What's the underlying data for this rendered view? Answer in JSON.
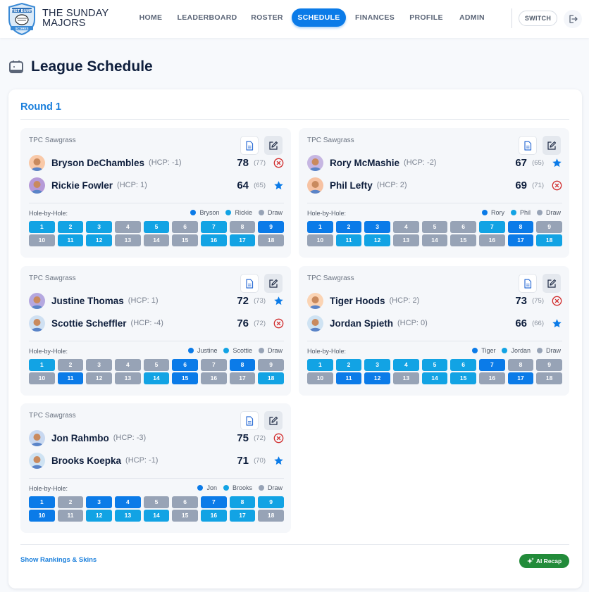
{
  "brand": {
    "title_line1": "THE SUNDAY",
    "title_line2": "MAJORS",
    "logo_top": "FIST BUMP",
    "logo_bottom": "SCORES"
  },
  "nav": {
    "items": [
      {
        "label": "HOME",
        "active": false
      },
      {
        "label": "LEADERBOARD",
        "active": false
      },
      {
        "label": "ROSTER",
        "active": false
      },
      {
        "label": "SCHEDULE",
        "active": true
      },
      {
        "label": "FINANCES",
        "active": false
      },
      {
        "label": "PROFILE",
        "active": false
      },
      {
        "label": "ADMIN",
        "active": false
      }
    ],
    "switch_label": "SWITCH",
    "logout_icon": "logout-icon"
  },
  "page": {
    "title": "League Schedule",
    "icon": "calendar-icon"
  },
  "round": {
    "title": "Round 1"
  },
  "colors": {
    "accent": "#0b7be8",
    "player1": "#0b7be8",
    "player2": "#12a3e4",
    "draw": "#97a3b6",
    "win_star": "#0b7be8",
    "loss_x": "#d12c2c",
    "ai_green": "#228b3a"
  },
  "matches": [
    {
      "course": "TPC Sawgrass",
      "players": [
        {
          "name": "Bryson DeChambles",
          "hcp": "(HCP: -1)",
          "gross": "78",
          "net": "(77)",
          "result": "loss",
          "short": "Bryson",
          "avatar": "#f9c9a8"
        },
        {
          "name": "Rickie Fowler",
          "hcp": "(HCP: 1)",
          "gross": "64",
          "net": "(65)",
          "result": "win",
          "short": "Rickie",
          "avatar": "#b69ad8"
        }
      ],
      "hole_label": "Hole-by-Hole:",
      "draw_label": "Draw",
      "holes": [
        "p2",
        "p2",
        "p2",
        "draw",
        "p2",
        "draw",
        "p2",
        "draw",
        "p1",
        "draw",
        "p2",
        "p2",
        "draw",
        "draw",
        "draw",
        "p2",
        "p2",
        "draw"
      ]
    },
    {
      "course": "TPC Sawgrass",
      "players": [
        {
          "name": "Rory McMashie",
          "hcp": "(HCP: -2)",
          "gross": "67",
          "net": "(65)",
          "result": "win",
          "short": "Rory",
          "avatar": "#c6b6e2"
        },
        {
          "name": "Phil Lefty",
          "hcp": "(HCP: 2)",
          "gross": "69",
          "net": "(71)",
          "result": "loss",
          "short": "Phil",
          "avatar": "#f7c2a2"
        }
      ],
      "hole_label": "Hole-by-Hole:",
      "draw_label": "Draw",
      "holes": [
        "p1",
        "p1",
        "p1",
        "draw",
        "draw",
        "draw",
        "p2",
        "p1",
        "draw",
        "draw",
        "p2",
        "p2",
        "draw",
        "draw",
        "draw",
        "draw",
        "p1",
        "p2"
      ]
    },
    {
      "course": "TPC Sawgrass",
      "players": [
        {
          "name": "Justine Thomas",
          "hcp": "(HCP: 1)",
          "gross": "72",
          "net": "(73)",
          "result": "win",
          "short": "Justine",
          "avatar": "#b5a8e0"
        },
        {
          "name": "Scottie Scheffler",
          "hcp": "(HCP: -4)",
          "gross": "76",
          "net": "(72)",
          "result": "loss",
          "short": "Scottie",
          "avatar": "#cfe0f2"
        }
      ],
      "hole_label": "Hole-by-Hole:",
      "draw_label": "Draw",
      "holes": [
        "p2",
        "draw",
        "draw",
        "draw",
        "draw",
        "p1",
        "draw",
        "p1",
        "draw",
        "draw",
        "p1",
        "draw",
        "draw",
        "p2",
        "p1",
        "draw",
        "draw",
        "p2"
      ]
    },
    {
      "course": "TPC Sawgrass",
      "players": [
        {
          "name": "Tiger Hoods",
          "hcp": "(HCP: 2)",
          "gross": "73",
          "net": "(75)",
          "result": "loss",
          "short": "Tiger",
          "avatar": "#fbd4b4"
        },
        {
          "name": "Jordan Spieth",
          "hcp": "(HCP: 0)",
          "gross": "66",
          "net": "(66)",
          "result": "win",
          "short": "Jordan",
          "avatar": "#cfe3f3"
        }
      ],
      "hole_label": "Hole-by-Hole:",
      "draw_label": "Draw",
      "holes": [
        "p2",
        "p2",
        "p2",
        "p2",
        "p2",
        "p2",
        "p1",
        "draw",
        "draw",
        "draw",
        "p1",
        "p1",
        "draw",
        "p2",
        "p2",
        "draw",
        "p1",
        "draw"
      ]
    },
    {
      "course": "TPC Sawgrass",
      "players": [
        {
          "name": "Jon Rahmbo",
          "hcp": "(HCP: -3)",
          "gross": "75",
          "net": "(72)",
          "result": "loss",
          "short": "Jon",
          "avatar": "#c8d8f0"
        },
        {
          "name": "Brooks Koepka",
          "hcp": "(HCP: -1)",
          "gross": "71",
          "net": "(70)",
          "result": "win",
          "short": "Brooks",
          "avatar": "#cfe3f3"
        }
      ],
      "hole_label": "Hole-by-Hole:",
      "draw_label": "Draw",
      "holes": [
        "p1",
        "draw",
        "p1",
        "p1",
        "draw",
        "draw",
        "p1",
        "p2",
        "p2",
        "p1",
        "draw",
        "p2",
        "p2",
        "p2",
        "draw",
        "p2",
        "p2",
        "draw"
      ]
    }
  ],
  "footer": {
    "show_link": "Show Rankings & Skins",
    "ai_button": "AI Recap"
  }
}
